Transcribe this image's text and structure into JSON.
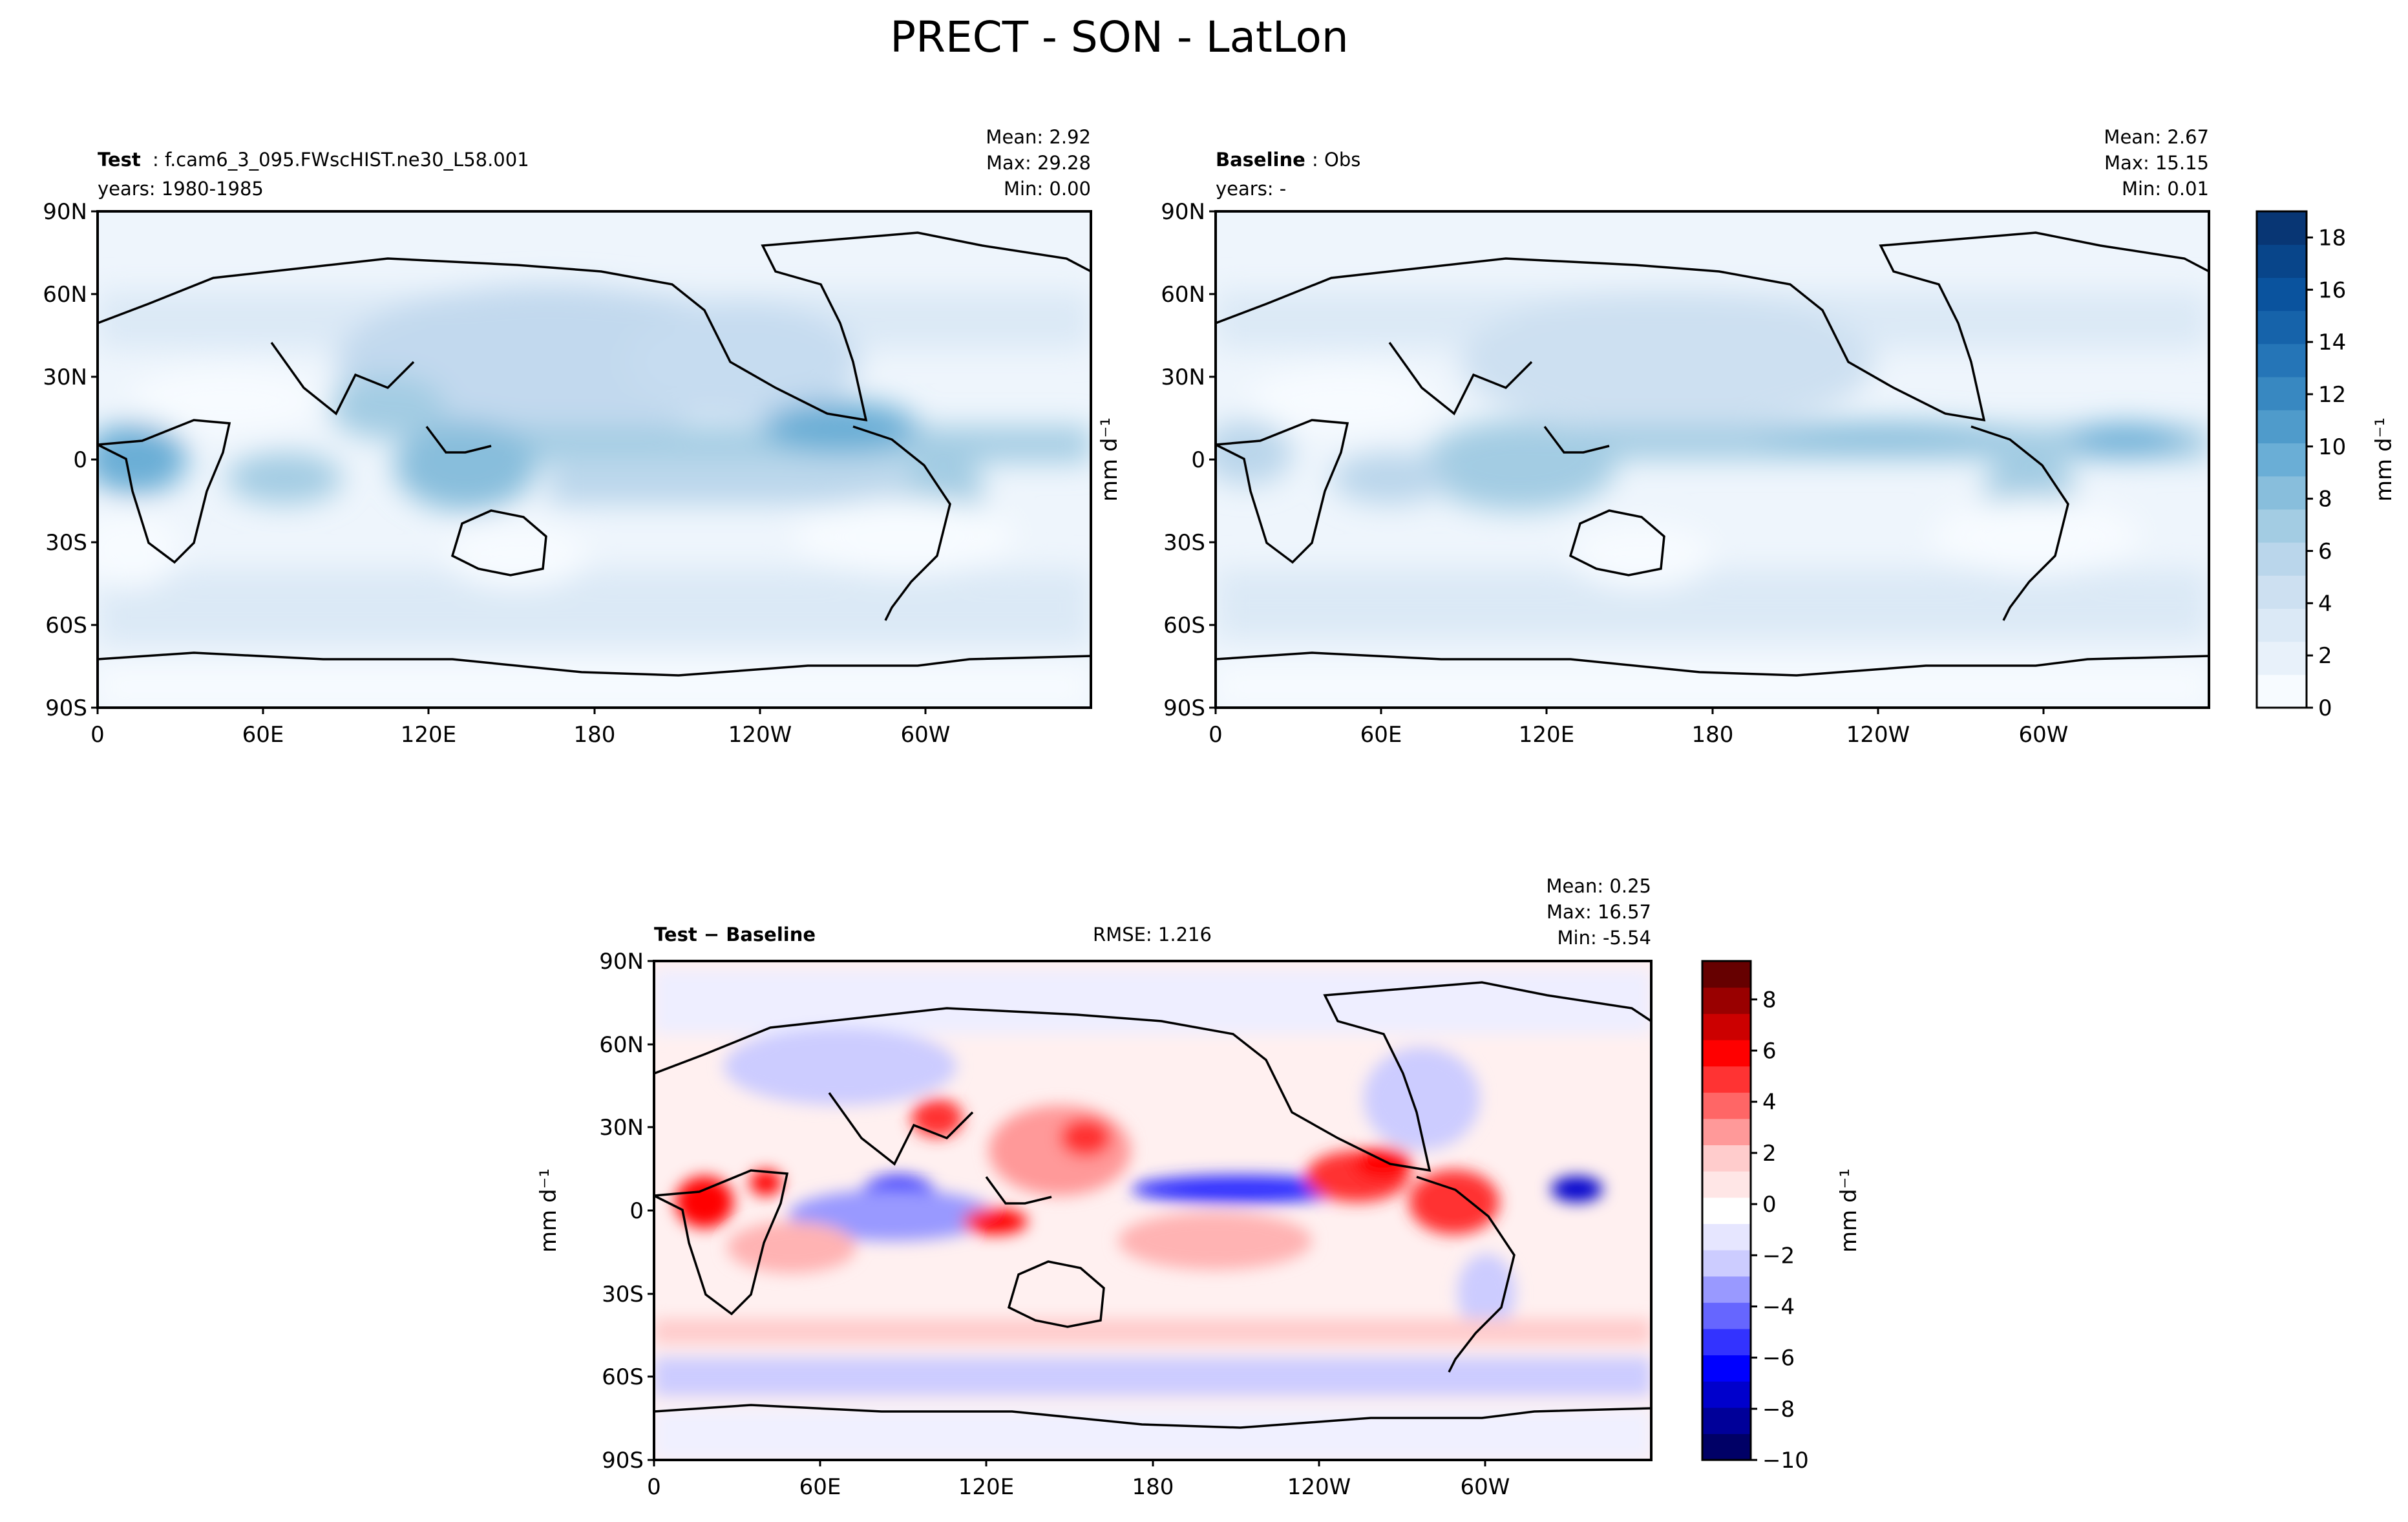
{
  "suptitle": "PRECT - SON - LatLon",
  "colors": {
    "seq_ramp": [
      "#f7fbff",
      "#e8f1fa",
      "#dbe9f6",
      "#cde0f1",
      "#bad6eb",
      "#a3cce3",
      "#88bedc",
      "#6aaed6",
      "#4f9bcb",
      "#3888c1",
      "#2575b7",
      "#1663aa",
      "#0a539e",
      "#08458a",
      "#083674"
    ],
    "div_ramp": [
      "#000066",
      "#000099",
      "#0000cc",
      "#0000ff",
      "#3333ff",
      "#6666ff",
      "#9999ff",
      "#ccccff",
      "#e6e6ff",
      "#ffffff",
      "#ffe6e6",
      "#ffcccc",
      "#ff9999",
      "#ff6666",
      "#ff3333",
      "#ff0000",
      "#cc0000",
      "#990000",
      "#660000"
    ],
    "coast": "#000000"
  },
  "chart_data": [
    {
      "type": "heatmap",
      "name": "test-panel",
      "title_bold": "Test",
      "title_rest": ": f.cam6_3_095.FWscHIST.ne30_L58.001",
      "subtitle": "years: 1980-1985",
      "stats": [
        "Mean:  2.92",
        "Max: 29.28",
        "Min:  0.00"
      ],
      "xticks": [
        "0",
        "60E",
        "120E",
        "180",
        "120W",
        "60W"
      ],
      "yticks": [
        "90N",
        "60N",
        "30N",
        "0",
        "30S",
        "60S",
        "90S"
      ],
      "xlim": [
        0,
        360
      ],
      "ylim": [
        -90,
        90
      ]
    },
    {
      "type": "heatmap",
      "name": "baseline-panel",
      "title_bold": "Baseline",
      "title_rest": ": Obs",
      "subtitle": "years: -",
      "stats": [
        "Mean:  2.67",
        "Max: 15.15",
        "Min:  0.01"
      ],
      "ylabel": "mm d⁻¹",
      "xticks": [
        "0",
        "60E",
        "120E",
        "180",
        "120W",
        "60W"
      ],
      "yticks": [
        "90N",
        "60N",
        "30N",
        "0",
        "30S",
        "60S",
        "90S"
      ],
      "xlim": [
        0,
        360
      ],
      "ylim": [
        -90,
        90
      ],
      "colorbar": {
        "label": "mm d⁻¹",
        "ticks": [
          "0",
          "2",
          "4",
          "6",
          "8",
          "10",
          "12",
          "14",
          "16",
          "18"
        ],
        "range": [
          0,
          19
        ]
      }
    },
    {
      "type": "heatmap",
      "name": "diff-panel",
      "title_bold": "Test − Baseline",
      "center_text": "RMSE: 1.216",
      "stats": [
        "Mean:  0.25",
        "Max: 16.57",
        "Min: -5.54"
      ],
      "ylabel": "mm d⁻¹",
      "xticks": [
        "0",
        "60E",
        "120E",
        "180",
        "120W",
        "60W"
      ],
      "yticks": [
        "90N",
        "60N",
        "30N",
        "0",
        "30S",
        "60S",
        "90S"
      ],
      "xlim": [
        0,
        360
      ],
      "ylim": [
        -90,
        90
      ],
      "colorbar": {
        "label": "mm d⁻¹",
        "ticks": [
          "8",
          "6",
          "4",
          "2",
          "0",
          "−2",
          "−4",
          "−6",
          "−8",
          "−10"
        ],
        "range": [
          -10,
          9.5
        ]
      }
    }
  ]
}
